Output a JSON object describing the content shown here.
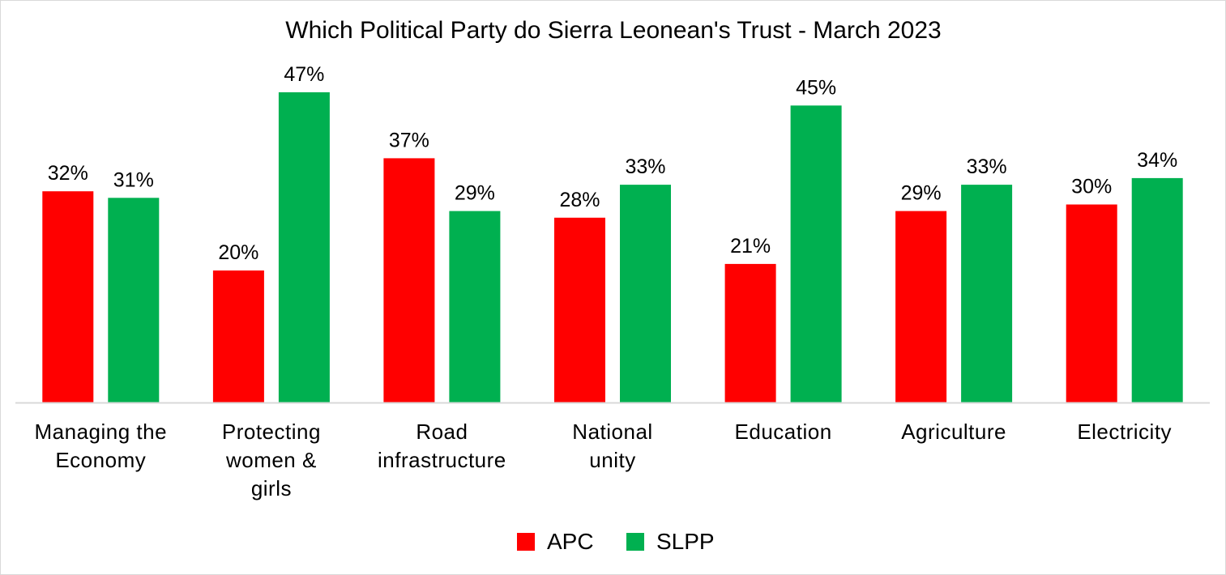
{
  "chart_data": {
    "type": "bar",
    "title": "Which Political Party do Sierra Leonean's Trust - March 2023",
    "categories": [
      [
        "Managing the",
        "Economy"
      ],
      [
        "Protecting",
        "women &",
        "girls"
      ],
      [
        "Road",
        "infrastructure"
      ],
      [
        "National",
        "unity"
      ],
      [
        "Education"
      ],
      [
        "Agriculture"
      ],
      [
        "Electricity"
      ]
    ],
    "series": [
      {
        "name": "APC",
        "color": "#ff0000",
        "values": [
          32,
          20,
          37,
          28,
          21,
          29,
          30
        ],
        "labels": [
          "32%",
          "20%",
          "37%",
          "28%",
          "21%",
          "29%",
          "30%"
        ]
      },
      {
        "name": "SLPP",
        "color": "#00b050",
        "values": [
          31,
          47,
          29,
          33,
          45,
          33,
          34
        ],
        "labels": [
          "31%",
          "47%",
          "29%",
          "33%",
          "45%",
          "33%",
          "34%"
        ]
      }
    ],
    "ylim": [
      0,
      50
    ],
    "grid": false,
    "legend": "bottom-center"
  }
}
